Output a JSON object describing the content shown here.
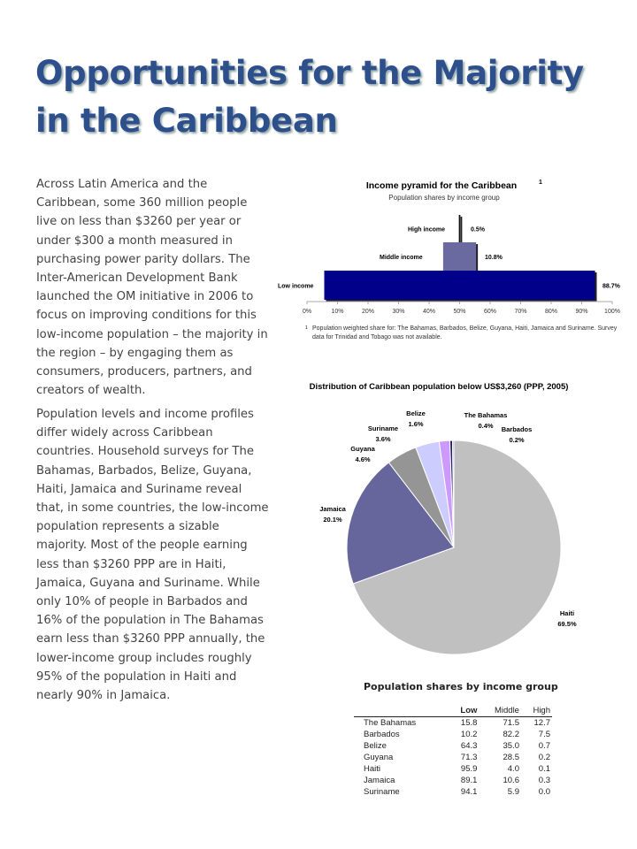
{
  "title_lines": [
    "Opportunities for the Majority",
    "in  the Caribbean"
  ],
  "paragraphs": [
    "Across Latin America and the Caribbean, some 360 million people live on less than $3260 per year or under $300 a month measured in purchasing power parity dollars. The Inter-American Development Bank launched the OM initiative in 2006 to focus on improving conditions for this low-income population – the majority in the region – by engaging them as consumers, producers, partners, and creators of wealth.",
    "Population levels and income profiles differ widely across Caribbean countries. Household surveys for The Bahamas, Barbados, Belize, Guyana, Haiti, Jamaica and Suriname reveal that, in some countries, the low-income population represents a sizable majority. Most of the people earning less than $3260 PPP are in Haiti, Jamaica, Guyana and Suriname. While only 10% of people in Barbados and 16% of the population in The Bahamas earn less than $3260 PPP annually, the lower-income group includes roughly 95% of the population in Haiti and nearly 90% in Jamaica."
  ],
  "chart_data": [
    {
      "type": "bar",
      "orientation": "horizontal-centered",
      "title": "Income pyramid for the Caribbean",
      "title_marker": "1",
      "subtitle": "Population shares by income group",
      "categories": [
        "High income",
        "Middle income",
        "Low income"
      ],
      "values": [
        0.5,
        10.8,
        88.7
      ],
      "data_labels": [
        "0.5%",
        "10.8%",
        "88.7%"
      ],
      "colors": [
        "#111111",
        "#6a6aa0",
        "#00008b"
      ],
      "xlim": [
        0,
        100
      ],
      "xticks": [
        "0%",
        "10%",
        "20%",
        "30%",
        "40%",
        "50%",
        "60%",
        "70%",
        "80%",
        "90%",
        "100%"
      ],
      "footnote_marker": "1",
      "footnote": "Population weighted share for: The Bahamas, Barbados, Belize, Guyana, Haiti, Jamaica and Suriname.   Survey data for Trinidad and Tobago was not available."
    },
    {
      "type": "pie",
      "title": "Distribution of Caribbean population below US$3,260 (PPP, 2005)",
      "slices": [
        {
          "label": "Haiti",
          "value": 69.5,
          "text": "69.5%",
          "color": "#c0c0c0"
        },
        {
          "label": "Jamaica",
          "value": 20.1,
          "text": "20.1%",
          "color": "#67669c"
        },
        {
          "label": "Guyana",
          "value": 4.6,
          "text": "4.6%",
          "color": "#959595"
        },
        {
          "label": "Suriname",
          "value": 3.6,
          "text": "3.6%",
          "color": "#ccccff"
        },
        {
          "label": "Belize",
          "value": 1.6,
          "text": "1.6%",
          "color": "#cc99ff"
        },
        {
          "label": "The Bahamas",
          "value": 0.4,
          "text": "0.4%",
          "color": "#222266"
        },
        {
          "label": "Barbados",
          "value": 0.2,
          "text": "0.2%",
          "color": "#9999dd"
        }
      ]
    }
  ],
  "table": {
    "title": "Population shares by income group",
    "columns": [
      "",
      "Low",
      "Middle",
      "High"
    ],
    "rows": [
      [
        "The Bahamas",
        "15.8",
        "71.5",
        "12.7"
      ],
      [
        "Barbados",
        "10.2",
        "82.2",
        "7.5"
      ],
      [
        "Belize",
        "64.3",
        "35.0",
        "0.7"
      ],
      [
        "Guyana",
        "71.3",
        "28.5",
        "0.2"
      ],
      [
        "Haiti",
        "95.9",
        "4.0",
        "0.1"
      ],
      [
        "Jamaica",
        "89.1",
        "10.6",
        "0.3"
      ],
      [
        "Suriname",
        "94.1",
        "5.9",
        "0.0"
      ]
    ]
  }
}
